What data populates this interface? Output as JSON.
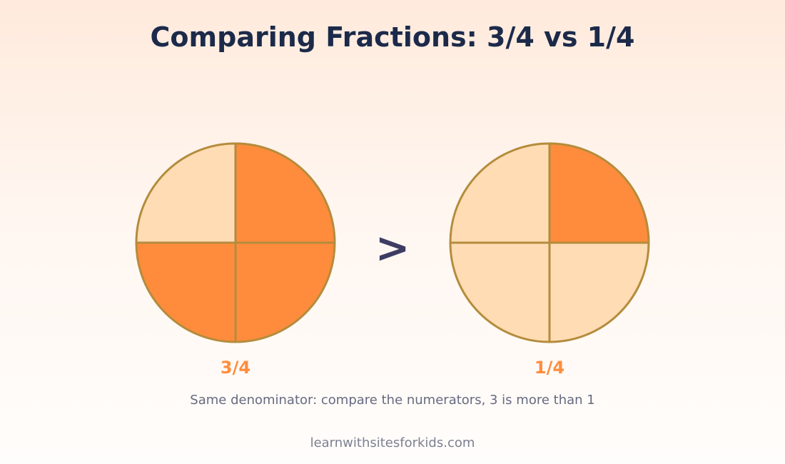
{
  "title": "Comparing Fractions: 3/4 vs 1/4",
  "comparison_symbol": ">",
  "explanation": "Same denominator: compare the numerators, 3 is more than 1",
  "footer": "learnwithsitesforkids.com",
  "colors": {
    "filled": "#ff8c3c",
    "empty": "#ffdcb4",
    "outline": "#b48c3c",
    "label": "#ff8c3c",
    "symbol": "#3c3c64"
  },
  "fractions": [
    {
      "label": "3/4",
      "numerator": 3,
      "denominator": 4,
      "shaded_quadrants": [
        "top-right",
        "bottom-right",
        "bottom-left"
      ]
    },
    {
      "label": "1/4",
      "numerator": 1,
      "denominator": 4,
      "shaded_quadrants": [
        "top-right"
      ]
    }
  ]
}
